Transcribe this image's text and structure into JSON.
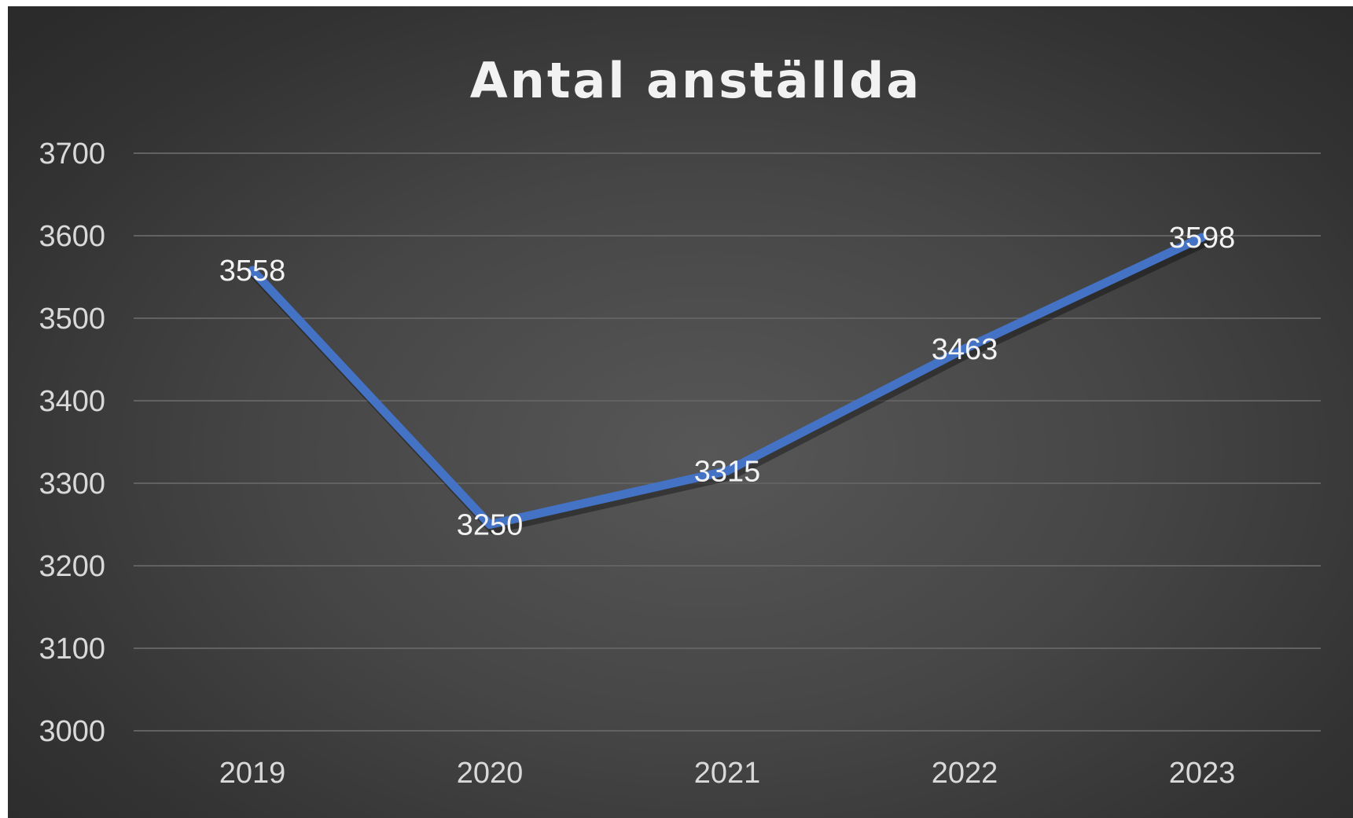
{
  "chart_data": {
    "type": "line",
    "title": "Antal anställda",
    "xlabel": "",
    "ylabel": "",
    "categories": [
      "2019",
      "2020",
      "2021",
      "2022",
      "2023"
    ],
    "values": [
      3558,
      3250,
      3315,
      3463,
      3598
    ],
    "data_labels": [
      "3558",
      "3250",
      "3315",
      "3463",
      "3598"
    ],
    "y_ticks": [
      "3000",
      "3100",
      "3200",
      "3300",
      "3400",
      "3500",
      "3600",
      "3700"
    ],
    "ylim": [
      3000,
      3700
    ],
    "grid": true,
    "legend": "none",
    "line_color": "#4472c4"
  }
}
